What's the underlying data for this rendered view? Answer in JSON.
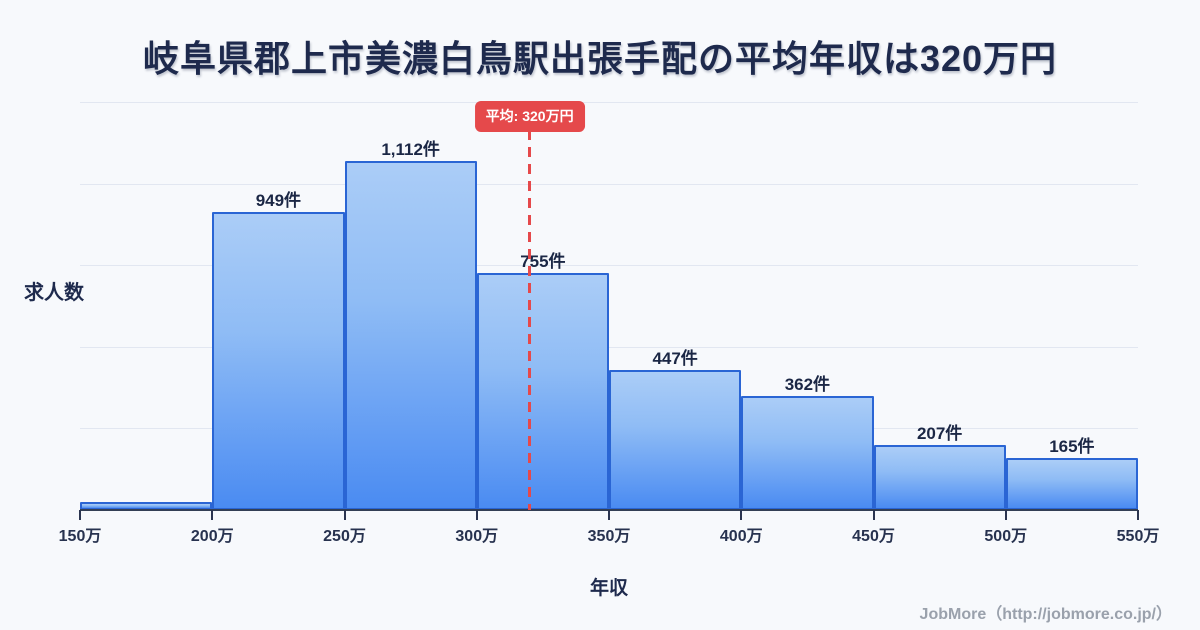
{
  "title": "岐阜県郡上市美濃白鳥駅出張手配の平均年収は320万円",
  "chart_data": {
    "type": "bar",
    "subtype": "histogram",
    "title": "岐阜県郡上市美濃白鳥駅出張手配の平均年収は320万円",
    "xlabel": "年収",
    "ylabel": "求人数",
    "x_tick_labels": [
      "150万",
      "200万",
      "250万",
      "300万",
      "350万",
      "400万",
      "450万",
      "500万",
      "550万"
    ],
    "x_range_man_yen": [
      150,
      550
    ],
    "bin_width_man_yen": 50,
    "values": [
      25,
      949,
      1112,
      755,
      447,
      362,
      207,
      165
    ],
    "value_labels": [
      null,
      "949件",
      "1,112件",
      "755件",
      "447件",
      "362件",
      "207件",
      "165件"
    ],
    "ylim": [
      0,
      1300
    ],
    "gridline_divisions": 5,
    "grid": true,
    "legend_position": null,
    "average_line": {
      "value_man_yen": 320,
      "label": "平均: 320万円"
    }
  },
  "footer": {
    "credit": "JobMore（http://jobmore.co.jp/）"
  },
  "colors": {
    "background": "#f7f9fc",
    "title_text": "#1e2a4d",
    "bar_fill_top": "#abcdf7",
    "bar_fill_bottom": "#4a8bf2",
    "bar_border": "#2a65d4",
    "gridline": "#e2e7f1",
    "axis_line": "#333f55",
    "tick_text": "#27324f",
    "value_label_text": "#1b2745",
    "average_red": "#e5494b",
    "footer_text": "#9aa1ac"
  }
}
